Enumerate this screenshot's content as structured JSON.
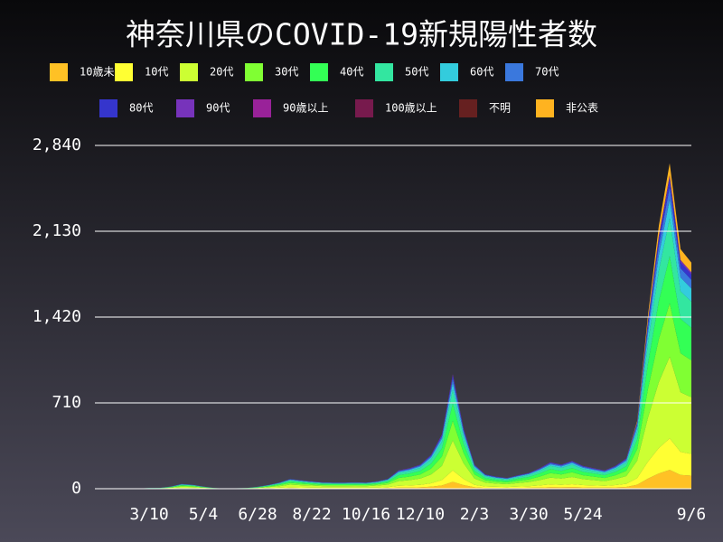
{
  "chart_data": {
    "type": "stacked_area",
    "title": "神奈川県のCOVID-19新規陽性者数",
    "categories": [
      null,
      null,
      null,
      null,
      null,
      "3/10",
      null,
      null,
      null,
      null,
      "5/4",
      null,
      null,
      null,
      null,
      "6/28",
      null,
      null,
      null,
      null,
      "8/22",
      null,
      null,
      null,
      null,
      "10/16",
      null,
      null,
      null,
      null,
      "12/10",
      null,
      null,
      null,
      null,
      "2/3",
      null,
      null,
      null,
      null,
      "3/30",
      null,
      null,
      null,
      null,
      "5/24",
      null,
      null,
      null,
      null,
      null,
      null,
      null,
      null,
      null,
      "9/6"
    ],
    "ylim": [
      0,
      2840
    ],
    "yticks": [
      0,
      710,
      {
        "value": 1420,
        "label": "1,420"
      },
      {
        "value": 2130,
        "label": "2,130"
      },
      {
        "value": 2840,
        "label": "2,840"
      }
    ],
    "grid": true,
    "series": [
      {
        "name": "10歳未満",
        "color": "#ffc125",
        "values": [
          0,
          0,
          0,
          0,
          0,
          0,
          0,
          1,
          2,
          2,
          1,
          0,
          0,
          0,
          0,
          1,
          2,
          3,
          5,
          4,
          4,
          3,
          3,
          3,
          3,
          3,
          4,
          5,
          9,
          10,
          12,
          17,
          27,
          57,
          30,
          12,
          7,
          6,
          5,
          7,
          8,
          10,
          13,
          12,
          14,
          11,
          10,
          9,
          11,
          15,
          33,
          84,
          126,
          156,
          114,
          108
        ]
      },
      {
        "name": "10代",
        "color": "#ffff33",
        "values": [
          0,
          0,
          0,
          0,
          0,
          1,
          1,
          2,
          4,
          3,
          2,
          1,
          0,
          0,
          1,
          2,
          3,
          5,
          8,
          7,
          6,
          5,
          5,
          5,
          5,
          5,
          6,
          8,
          15,
          17,
          20,
          28,
          45,
          95,
          50,
          20,
          12,
          10,
          9,
          11,
          13,
          17,
          22,
          20,
          23,
          19,
          17,
          15,
          19,
          25,
          55,
          140,
          210,
          260,
          190,
          180
        ]
      },
      {
        "name": "20代",
        "color": "#ccff33",
        "values": [
          0,
          0,
          0,
          1,
          1,
          1,
          2,
          5,
          10,
          9,
          5,
          2,
          1,
          1,
          2,
          4,
          8,
          13,
          21,
          18,
          16,
          14,
          13,
          13,
          14,
          13,
          16,
          21,
          39,
          44,
          52,
          73,
          117,
          247,
          130,
          52,
          31,
          26,
          23,
          29,
          34,
          44,
          57,
          52,
          60,
          49,
          44,
          39,
          49,
          65,
          143,
          364,
          546,
          676,
          494,
          468
        ]
      },
      {
        "name": "30代",
        "color": "#80ff33",
        "values": [
          0,
          0,
          0,
          0,
          1,
          1,
          1,
          3,
          7,
          6,
          3,
          1,
          1,
          1,
          1,
          3,
          5,
          9,
          14,
          12,
          10,
          9,
          9,
          9,
          9,
          9,
          10,
          14,
          26,
          29,
          34,
          48,
          77,
          162,
          85,
          34,
          20,
          17,
          15,
          19,
          22,
          29,
          37,
          34,
          39,
          32,
          29,
          26,
          32,
          43,
          94,
          238,
          357,
          442,
          323,
          306
        ]
      },
      {
        "name": "40代",
        "color": "#33ff55",
        "values": [
          0,
          0,
          0,
          0,
          0,
          1,
          1,
          3,
          6,
          5,
          3,
          1,
          0,
          1,
          1,
          2,
          5,
          8,
          12,
          11,
          9,
          8,
          8,
          8,
          8,
          8,
          9,
          12,
          23,
          26,
          30,
          42,
          68,
          143,
          75,
          30,
          18,
          15,
          14,
          17,
          20,
          26,
          33,
          30,
          35,
          29,
          26,
          23,
          29,
          38,
          83,
          210,
          315,
          390,
          285,
          270
        ]
      },
      {
        "name": "50代",
        "color": "#33e6a0",
        "values": [
          0,
          0,
          0,
          0,
          0,
          1,
          1,
          2,
          5,
          4,
          2,
          1,
          0,
          1,
          1,
          2,
          4,
          6,
          10,
          8,
          7,
          7,
          6,
          6,
          7,
          6,
          7,
          10,
          18,
          20,
          24,
          34,
          54,
          114,
          60,
          24,
          14,
          12,
          11,
          13,
          16,
          20,
          26,
          24,
          28,
          23,
          20,
          18,
          23,
          30,
          66,
          168,
          252,
          312,
          228,
          216
        ]
      },
      {
        "name": "60代",
        "color": "#33ccdd",
        "values": [
          0,
          0,
          0,
          0,
          0,
          0,
          1,
          1,
          2,
          2,
          1,
          0,
          0,
          0,
          0,
          1,
          2,
          3,
          5,
          4,
          4,
          3,
          3,
          3,
          3,
          3,
          4,
          5,
          9,
          10,
          12,
          17,
          27,
          57,
          30,
          12,
          7,
          6,
          5,
          7,
          8,
          10,
          13,
          12,
          14,
          11,
          10,
          9,
          11,
          15,
          33,
          84,
          126,
          156,
          114,
          108
        ]
      },
      {
        "name": "70代",
        "color": "#3a78dd",
        "values": [
          0,
          0,
          0,
          0,
          0,
          0,
          0,
          1,
          2,
          1,
          1,
          0,
          0,
          0,
          0,
          1,
          1,
          2,
          3,
          3,
          2,
          2,
          2,
          2,
          2,
          2,
          2,
          3,
          6,
          7,
          8,
          11,
          18,
          38,
          20,
          8,
          5,
          4,
          4,
          4,
          5,
          7,
          9,
          8,
          9,
          8,
          7,
          6,
          8,
          10,
          22,
          56,
          84,
          104,
          76,
          72
        ]
      },
      {
        "name": "80代",
        "color": "#3535cc",
        "values": [
          0,
          0,
          0,
          0,
          0,
          0,
          0,
          0,
          1,
          1,
          0,
          0,
          0,
          0,
          0,
          0,
          1,
          1,
          2,
          2,
          2,
          1,
          1,
          1,
          1,
          1,
          2,
          2,
          4,
          4,
          5,
          7,
          11,
          24,
          13,
          5,
          3,
          3,
          2,
          3,
          3,
          4,
          6,
          5,
          6,
          5,
          4,
          4,
          5,
          6,
          14,
          35,
          53,
          65,
          48,
          45
        ]
      },
      {
        "name": "90代",
        "color": "#7733bb",
        "values": [
          0,
          0,
          0,
          0,
          0,
          0,
          0,
          0,
          0,
          0,
          0,
          0,
          0,
          0,
          0,
          0,
          0,
          0,
          1,
          1,
          1,
          1,
          1,
          1,
          1,
          1,
          1,
          1,
          2,
          2,
          2,
          3,
          5,
          10,
          5,
          2,
          1,
          1,
          1,
          1,
          1,
          2,
          2,
          2,
          2,
          2,
          2,
          2,
          2,
          3,
          6,
          14,
          21,
          26,
          19,
          18
        ]
      },
      {
        "name": "90歳以上",
        "color": "#992299",
        "values": [
          0,
          0,
          0,
          0,
          0,
          0,
          0,
          0,
          0,
          0,
          0,
          0,
          0,
          0,
          0,
          0,
          0,
          0,
          0,
          0,
          0,
          0,
          0,
          0,
          0,
          0,
          0,
          0,
          0,
          0,
          0,
          0,
          0,
          1,
          0,
          0,
          0,
          0,
          0,
          0,
          0,
          0,
          0,
          0,
          0,
          0,
          0,
          0,
          0,
          0,
          0,
          0,
          1,
          1,
          0,
          0
        ]
      },
      {
        "name": "100歳以上",
        "color": "#771a4d",
        "values": [
          0,
          0,
          0,
          0,
          0,
          0,
          0,
          0,
          0,
          0,
          0,
          0,
          0,
          0,
          0,
          0,
          0,
          0,
          0,
          0,
          0,
          0,
          0,
          0,
          0,
          0,
          0,
          0,
          0,
          0,
          0,
          0,
          0,
          0,
          0,
          0,
          0,
          0,
          0,
          0,
          0,
          0,
          0,
          0,
          0,
          0,
          0,
          0,
          0,
          0,
          0,
          0,
          0,
          1,
          0,
          0
        ]
      },
      {
        "name": "不明",
        "color": "#662020",
        "values": [
          0,
          0,
          0,
          0,
          0,
          0,
          0,
          0,
          0,
          0,
          0,
          0,
          0,
          0,
          0,
          0,
          0,
          0,
          0,
          0,
          0,
          0,
          0,
          0,
          0,
          0,
          0,
          0,
          0,
          0,
          0,
          0,
          0,
          0,
          0,
          0,
          0,
          0,
          0,
          0,
          0,
          0,
          0,
          0,
          0,
          0,
          0,
          0,
          0,
          0,
          0,
          2,
          3,
          4,
          2,
          0
        ]
      },
      {
        "name": "非公表",
        "color": "#ffb320",
        "values": [
          0,
          0,
          0,
          0,
          0,
          0,
          0,
          0,
          0,
          0,
          0,
          0,
          0,
          0,
          0,
          0,
          0,
          0,
          0,
          0,
          0,
          0,
          0,
          0,
          0,
          0,
          0,
          0,
          0,
          0,
          0,
          0,
          0,
          0,
          0,
          0,
          0,
          0,
          0,
          0,
          0,
          0,
          0,
          0,
          0,
          0,
          0,
          0,
          0,
          0,
          10,
          40,
          80,
          100,
          90,
          80
        ]
      }
    ]
  }
}
